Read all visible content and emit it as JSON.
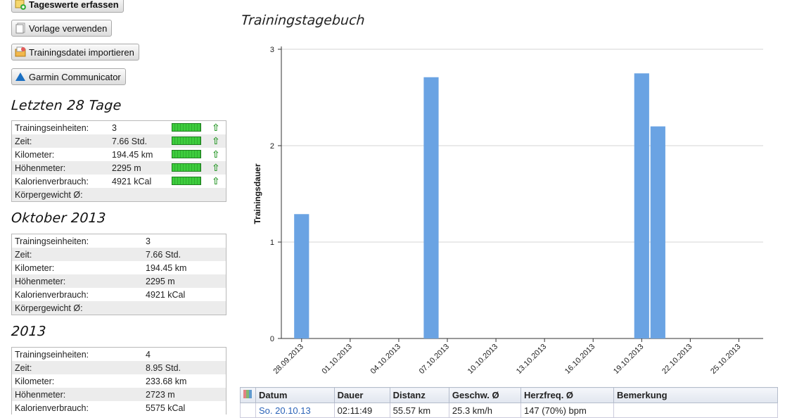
{
  "sidebar": {
    "buttons": [
      {
        "label": "Tageswerte erfassen",
        "icon": "add-entry-icon"
      },
      {
        "label": "Vorlage verwenden",
        "icon": "template-document-icon"
      },
      {
        "label": "Trainingsdatei importieren",
        "icon": "import-folder-icon"
      },
      {
        "label": "Garmin Communicator",
        "icon": "garmin-triangle-icon"
      }
    ],
    "last28": {
      "title": "Letzten 28 Tage",
      "rows": [
        {
          "label": "Trainingseinheiten:",
          "value": "3"
        },
        {
          "label": "Zeit:",
          "value": "7.66 Std."
        },
        {
          "label": "Kilometer:",
          "value": "194.45 km"
        },
        {
          "label": "Höhenmeter:",
          "value": "2295 m"
        },
        {
          "label": "Kalorienverbrauch:",
          "value": "4921 kCal"
        },
        {
          "label": "Körpergewicht Ø:",
          "value": ""
        }
      ]
    },
    "october": {
      "title": "Oktober 2013",
      "rows": [
        {
          "label": "Trainingseinheiten:",
          "value": "3"
        },
        {
          "label": "Zeit:",
          "value": "7.66 Std."
        },
        {
          "label": "Kilometer:",
          "value": "194.45 km"
        },
        {
          "label": "Höhenmeter:",
          "value": "2295 m"
        },
        {
          "label": "Kalorienverbrauch:",
          "value": "4921 kCal"
        },
        {
          "label": "Körpergewicht Ø:",
          "value": ""
        }
      ]
    },
    "year": {
      "title": "2013",
      "rows": [
        {
          "label": "Trainingseinheiten:",
          "value": "4"
        },
        {
          "label": "Zeit:",
          "value": "8.95 Std."
        },
        {
          "label": "Kilometer:",
          "value": "233.68 km"
        },
        {
          "label": "Höhenmeter:",
          "value": "2723 m"
        },
        {
          "label": "Kalorienverbrauch:",
          "value": "5575 kCal"
        }
      ]
    }
  },
  "chart_data": {
    "type": "bar",
    "title": "Trainingstagebuch",
    "xlabel": "",
    "ylabel": "Trainingsdauer",
    "ylim": [
      0,
      3
    ],
    "yticks": [
      "0",
      "1",
      "2",
      "3"
    ],
    "xticks": [
      "28.09.2013",
      "01.10.2013",
      "04.10.2013",
      "07.10.2013",
      "10.10.2013",
      "13.10.2013",
      "16.10.2013",
      "19.10.2013",
      "22.10.2013",
      "25.10.2013"
    ],
    "bars": [
      {
        "date": "28.09.2013",
        "value": 1.29
      },
      {
        "date": "06.10.2013",
        "value": 2.71
      },
      {
        "date": "19.10.2013",
        "value": 2.75
      },
      {
        "date": "20.10.2013",
        "value": 2.2
      }
    ],
    "grid": true,
    "bar_color": "#6aa3e3"
  },
  "table": {
    "columns": [
      "Datum",
      "Dauer",
      "Distanz",
      "Geschw. Ø",
      "Herzfreq. Ø",
      "Bemerkung"
    ],
    "rows": [
      [
        "So. 20.10.13",
        "02:11:49",
        "55.57 km",
        "25.3 km/h",
        "147 (70%) bpm",
        ""
      ]
    ]
  }
}
